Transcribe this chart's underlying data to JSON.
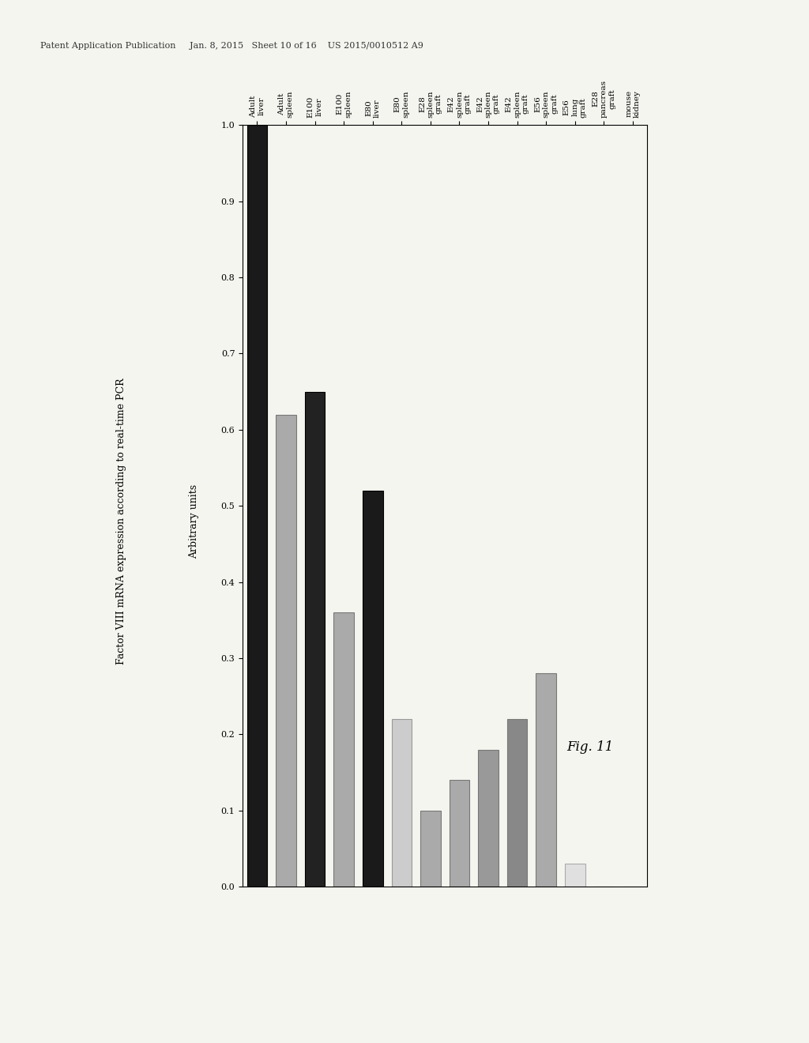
{
  "patent_header": "Patent Application Publication     Jan. 8, 2015   Sheet 10 of 16    US 2015/0010512 A9",
  "title": "Factor VIII mRNA expression according to real-time PCR",
  "ylabel_left": "Arbitrary units",
  "fig_caption": "Fig. 11",
  "xlim": [
    0.0,
    1.0
  ],
  "xticks": [
    0.0,
    0.1,
    0.2,
    0.3,
    0.4,
    0.5,
    0.6,
    0.7,
    0.8,
    0.9,
    1.0
  ],
  "categories": [
    "Adult\nliver",
    "Adult\nspleen",
    "E100\nliver",
    "E100\nspleen",
    "E80\nliver",
    "E80\nspleen",
    "E28\nspleen\ngraft",
    "E42\nspleen\ngraft",
    "E42\nspleen\ngraft",
    "E42\nspleen\ngraft",
    "E56\nspleen\ngraft",
    "E56\nlung\ngraft",
    "E28\npancreas\ngraft",
    "mouse\nkidney"
  ],
  "values": [
    1.0,
    0.62,
    0.65,
    0.36,
    0.52,
    0.22,
    0.1,
    0.14,
    0.18,
    0.22,
    0.28,
    0.03,
    0.0,
    0.0
  ],
  "bar_colors": [
    "#1a1a1a",
    "#aaaaaa",
    "#222222",
    "#aaaaaa",
    "#1a1a1a",
    "#cccccc",
    "#aaaaaa",
    "#aaaaaa",
    "#999999",
    "#888888",
    "#aaaaaa",
    "#e0e0e0",
    "#e0e0e0",
    "#e8e8e8"
  ],
  "bar_edge_colors": [
    "#000000",
    "#777777",
    "#000000",
    "#777777",
    "#000000",
    "#999999",
    "#777777",
    "#777777",
    "#777777",
    "#777777",
    "#777777",
    "#aaaaaa",
    "#aaaaaa",
    "#aaaaaa"
  ],
  "background_color": "#f5f5f0",
  "title_fontsize": 9,
  "tick_fontsize": 8,
  "caption_fontsize": 12,
  "header_fontsize": 8
}
